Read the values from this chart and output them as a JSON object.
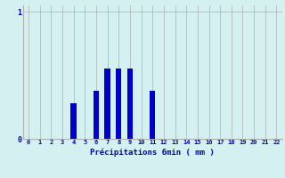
{
  "hours": [
    0,
    1,
    2,
    3,
    4,
    5,
    6,
    7,
    8,
    9,
    10,
    11,
    12,
    13,
    14,
    15,
    16,
    17,
    18,
    19,
    20,
    21,
    22
  ],
  "values": [
    0,
    0,
    0,
    0,
    0.28,
    0,
    0.38,
    0.55,
    0.55,
    0.55,
    0,
    0.38,
    0,
    0,
    0,
    0,
    0,
    0,
    0,
    0,
    0,
    0,
    0
  ],
  "bar_color": "#0000cc",
  "bg_color": "#d4f0f0",
  "grid_color": "#b0b0b0",
  "xlabel": "Précipitations 6min ( mm )",
  "xlabel_color": "#0000cc",
  "ylabel_color": "#0000cc",
  "ylim": [
    0,
    1.05
  ],
  "xlim": [
    -0.5,
    22.5
  ],
  "x_tick_labels": [
    "0",
    "1",
    "2",
    "3",
    "4",
    "5",
    "6",
    "7",
    "8",
    "9",
    "10",
    "11",
    "12",
    "13",
    "14",
    "15",
    "16",
    "17",
    "18",
    "19",
    "20",
    "21",
    "22"
  ],
  "yticks": [
    0,
    1
  ],
  "bar_width": 0.5
}
